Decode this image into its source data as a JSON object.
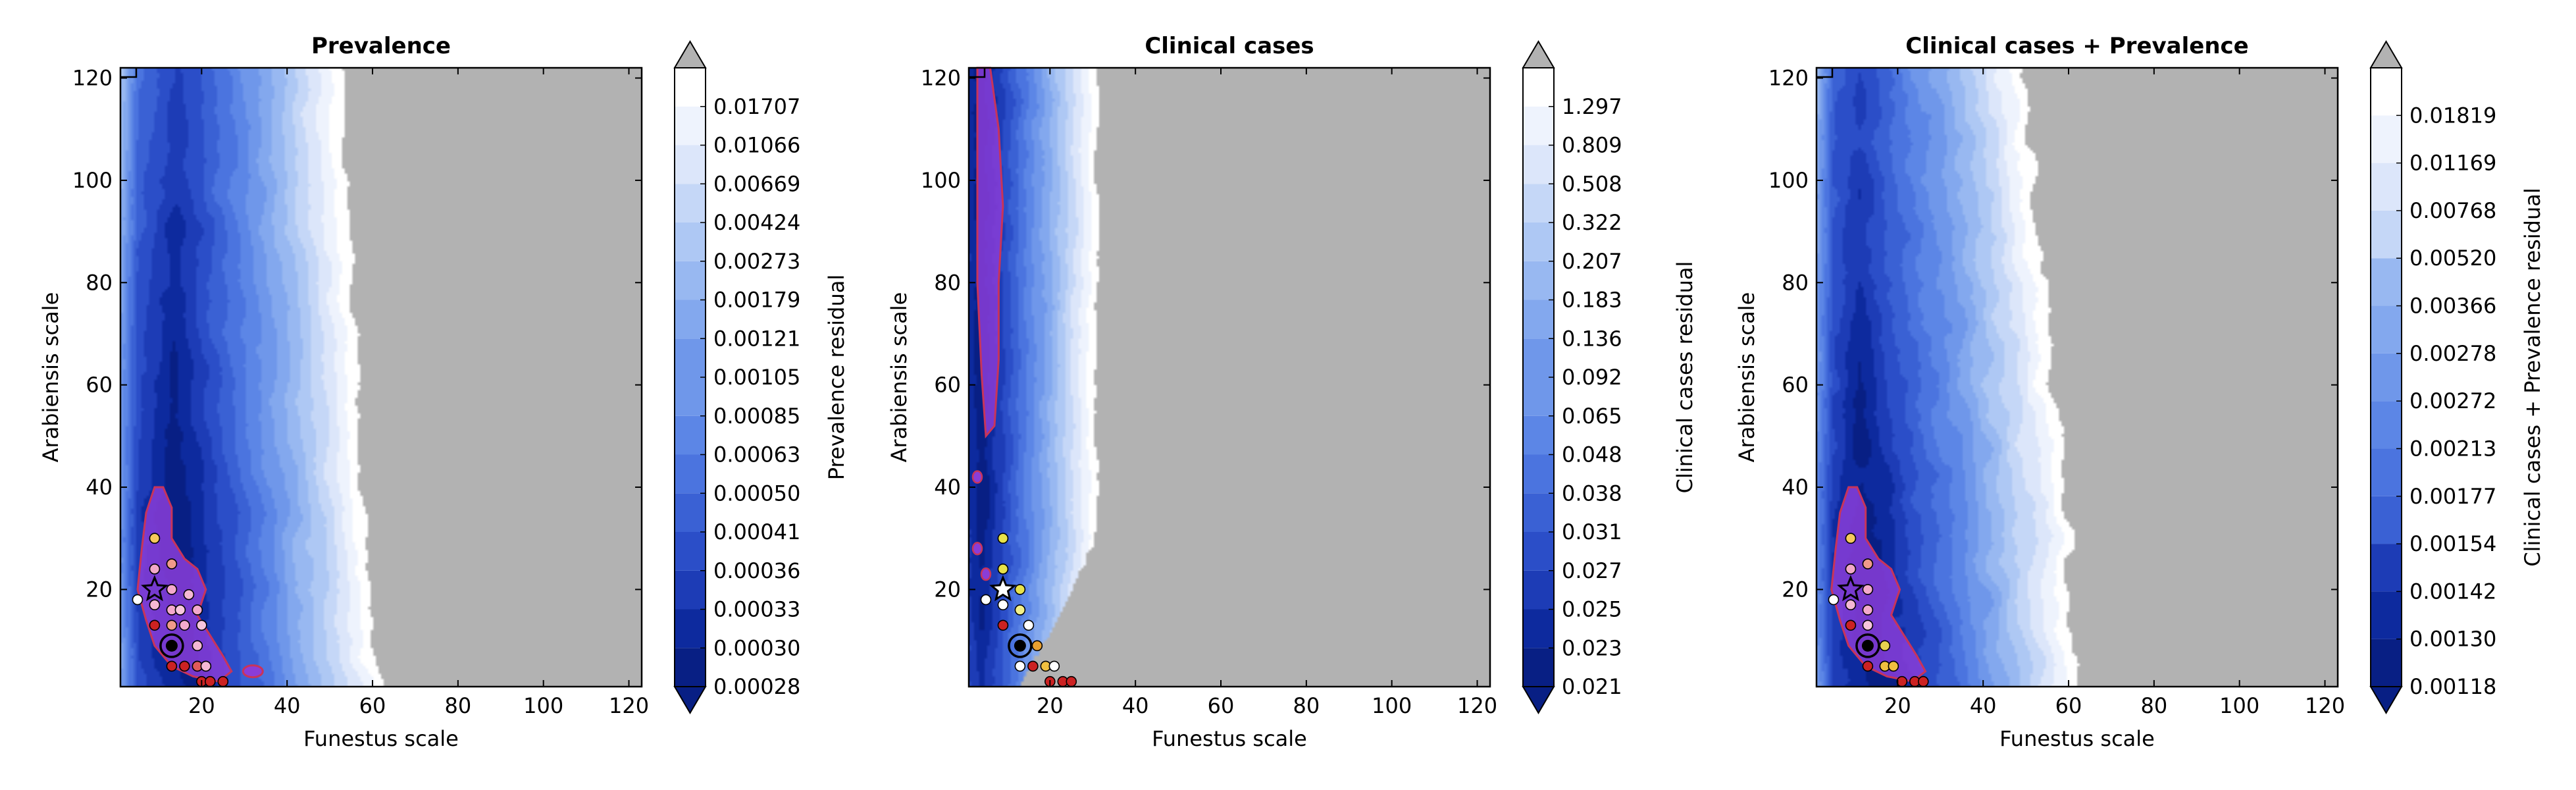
{
  "chart_data": [
    {
      "type": "contour",
      "title": "Prevalence",
      "xlabel": "Funestus scale",
      "ylabel": "Arabiensis scale",
      "xlim": [
        1,
        123
      ],
      "ylim": [
        1,
        122
      ],
      "xticks": [
        20,
        40,
        60,
        80,
        100,
        120
      ],
      "yticks": [
        20,
        40,
        60,
        80,
        100,
        120
      ],
      "colorbar": {
        "label": "Prevalence residual",
        "levels": [
          "0.00028",
          "0.00030",
          "0.00033",
          "0.00036",
          "0.00041",
          "0.00050",
          "0.00063",
          "0.00085",
          "0.00105",
          "0.00121",
          "0.00179",
          "0.00273",
          "0.00424",
          "0.00669",
          "0.01066",
          "0.01707"
        ]
      },
      "gray_threshold_reached": true,
      "best_fit_region": "valley",
      "highlight": {
        "star": [
          9,
          20
        ],
        "circle": [
          13,
          9
        ]
      },
      "fit_points": [
        {
          "x": 9,
          "y": 30,
          "c": "#f6c95c"
        },
        {
          "x": 13,
          "y": 25,
          "c": "#f09a8a"
        },
        {
          "x": 9,
          "y": 24,
          "c": "#f2a8c8"
        },
        {
          "x": 13,
          "y": 20,
          "c": "#f4a9cc"
        },
        {
          "x": 17,
          "y": 19,
          "c": "#f5b8d4"
        },
        {
          "x": 5,
          "y": 18,
          "c": "#ffffff"
        },
        {
          "x": 9,
          "y": 17,
          "c": "#f5b8d4"
        },
        {
          "x": 13,
          "y": 16,
          "c": "#f4a9cc"
        },
        {
          "x": 15,
          "y": 16,
          "c": "#f7c5dd"
        },
        {
          "x": 19,
          "y": 16,
          "c": "#f4a9cc"
        },
        {
          "x": 9,
          "y": 13,
          "c": "#cc2222"
        },
        {
          "x": 13,
          "y": 13,
          "c": "#f09a8a"
        },
        {
          "x": 16,
          "y": 13,
          "c": "#f4a9cc"
        },
        {
          "x": 20,
          "y": 13,
          "c": "#f7c5dd"
        },
        {
          "x": 19,
          "y": 9,
          "c": "#f5b8d4"
        },
        {
          "x": 13,
          "y": 5,
          "c": "#cc2222"
        },
        {
          "x": 16,
          "y": 5,
          "c": "#cc2222"
        },
        {
          "x": 19,
          "y": 5,
          "c": "#e25a5a"
        },
        {
          "x": 21,
          "y": 5,
          "c": "#f5b8d4"
        },
        {
          "x": 20,
          "y": 2,
          "c": "#cc2222"
        },
        {
          "x": 22,
          "y": 2,
          "c": "#cc2222"
        },
        {
          "x": 25,
          "y": 2,
          "c": "#cc2222"
        }
      ]
    },
    {
      "type": "contour",
      "title": "Clinical cases",
      "xlabel": "Funestus scale",
      "ylabel": "Arabiensis scale",
      "xlim": [
        1,
        123
      ],
      "ylim": [
        1,
        122
      ],
      "xticks": [
        20,
        40,
        60,
        80,
        100,
        120
      ],
      "yticks": [
        20,
        40,
        60,
        80,
        100,
        120
      ],
      "colorbar": {
        "label": "Clinical cases residual",
        "levels": [
          "0.021",
          "0.023",
          "0.025",
          "0.027",
          "0.031",
          "0.038",
          "0.048",
          "0.065",
          "0.092",
          "0.136",
          "0.183",
          "0.207",
          "0.322",
          "0.508",
          "0.809",
          "1.297"
        ]
      },
      "gray_threshold_reached": true,
      "best_fit_region": "left edge ridge",
      "highlight": {
        "star": [
          9,
          20
        ],
        "circle": [
          13,
          9
        ]
      },
      "fit_points": [
        {
          "x": 9,
          "y": 30,
          "c": "#e8e24a"
        },
        {
          "x": 9,
          "y": 24,
          "c": "#e8e24a"
        },
        {
          "x": 13,
          "y": 20,
          "c": "#e8e24a"
        },
        {
          "x": 5,
          "y": 18,
          "c": "#ffffff"
        },
        {
          "x": 9,
          "y": 17,
          "c": "#ffffff"
        },
        {
          "x": 13,
          "y": 16,
          "c": "#f2f08a"
        },
        {
          "x": 9,
          "y": 13,
          "c": "#cc2222"
        },
        {
          "x": 15,
          "y": 13,
          "c": "#ffffff"
        },
        {
          "x": 17,
          "y": 9,
          "c": "#e8a030"
        },
        {
          "x": 13,
          "y": 5,
          "c": "#ffffff"
        },
        {
          "x": 16,
          "y": 5,
          "c": "#cc2222"
        },
        {
          "x": 19,
          "y": 5,
          "c": "#f0c040"
        },
        {
          "x": 21,
          "y": 5,
          "c": "#ffffff"
        },
        {
          "x": 20,
          "y": 2,
          "c": "#cc2222"
        },
        {
          "x": 23,
          "y": 2,
          "c": "#cc2222"
        },
        {
          "x": 25,
          "y": 2,
          "c": "#cc2222"
        }
      ]
    },
    {
      "type": "contour",
      "title": "Clinical cases + Prevalence",
      "xlabel": "Funestus scale",
      "ylabel": "Arabiensis scale",
      "xlim": [
        1,
        123
      ],
      "ylim": [
        1,
        122
      ],
      "xticks": [
        20,
        40,
        60,
        80,
        100,
        120
      ],
      "yticks": [
        20,
        40,
        60,
        80,
        100,
        120
      ],
      "colorbar": {
        "label": "Clinical cases + Prevalence residual",
        "levels": [
          "0.00118",
          "0.00130",
          "0.00142",
          "0.00154",
          "0.00177",
          "0.00213",
          "0.00272",
          "0.00278",
          "0.00366",
          "0.00520",
          "0.00768",
          "0.01169",
          "0.01819"
        ]
      },
      "gray_threshold_reached": true,
      "best_fit_region": "valley",
      "highlight": {
        "star": [
          9,
          20
        ],
        "circle": [
          13,
          9
        ]
      },
      "fit_points": [
        {
          "x": 9,
          "y": 30,
          "c": "#f6c95c"
        },
        {
          "x": 13,
          "y": 25,
          "c": "#f09a8a"
        },
        {
          "x": 9,
          "y": 24,
          "c": "#f2a8c8"
        },
        {
          "x": 13,
          "y": 20,
          "c": "#f4a9cc"
        },
        {
          "x": 5,
          "y": 18,
          "c": "#ffffff"
        },
        {
          "x": 9,
          "y": 17,
          "c": "#f5b8d4"
        },
        {
          "x": 13,
          "y": 16,
          "c": "#f4a9cc"
        },
        {
          "x": 9,
          "y": 13,
          "c": "#cc2222"
        },
        {
          "x": 13,
          "y": 13,
          "c": "#f7c5dd"
        },
        {
          "x": 17,
          "y": 9,
          "c": "#e8d050"
        },
        {
          "x": 13,
          "y": 5,
          "c": "#cc2222"
        },
        {
          "x": 17,
          "y": 5,
          "c": "#f0c040"
        },
        {
          "x": 19,
          "y": 5,
          "c": "#f0c040"
        },
        {
          "x": 21,
          "y": 2,
          "c": "#cc2222"
        },
        {
          "x": 24,
          "y": 2,
          "c": "#cc2222"
        },
        {
          "x": 26,
          "y": 2,
          "c": "#cc2222"
        }
      ]
    }
  ],
  "palette": {
    "gray": "#b2b2b2",
    "violet_fill": "#8a3dd8",
    "violet_edge": "#c8345a",
    "level_colors": [
      "#081f84",
      "#0d2a9e",
      "#1d3cb6",
      "#2b4ec8",
      "#3a61d4",
      "#4b74df",
      "#5c86e6",
      "#6f97ea",
      "#83a8ee",
      "#98b8f1",
      "#aec8f4",
      "#c5d7f7",
      "#dce6fa",
      "#eef3fd",
      "#ffffff"
    ]
  }
}
